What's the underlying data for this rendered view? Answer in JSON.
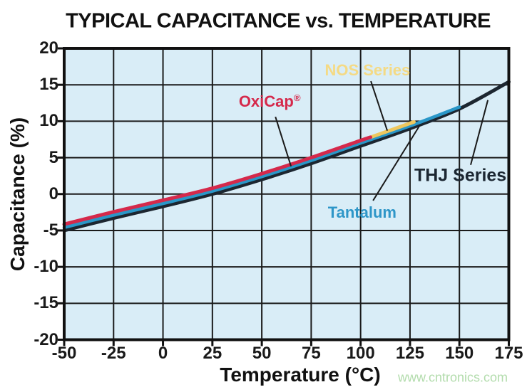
{
  "page": {
    "watermark": "www.cntronics.com"
  },
  "chart_data": {
    "type": "line",
    "title": "TYPICAL CAPACITANCE vs. TEMPERATURE",
    "xlabel": "Temperature (°C)",
    "ylabel": "Capacitance (%)",
    "xlim": [
      -50,
      175
    ],
    "ylim": [
      -20,
      20
    ],
    "xticks": [
      -50,
      -25,
      0,
      25,
      50,
      75,
      100,
      125,
      150,
      175
    ],
    "yticks": [
      20,
      15,
      10,
      5,
      0,
      -5,
      -10,
      -15,
      -20
    ],
    "grid": true,
    "legend_position": "inline annotations with leader lines",
    "plot_bg_color": "#d9edf7",
    "grid_color": "#1a1a1a",
    "border_color": "#111111",
    "series": [
      {
        "name": "THJ Series",
        "color": "#1c2630",
        "stroke_width": 5,
        "x": [
          -50,
          -25,
          0,
          25,
          50,
          75,
          100,
          125,
          150,
          175
        ],
        "y": [
          -5.0,
          -3.3,
          -1.7,
          0.0,
          2.0,
          4.2,
          6.6,
          9.0,
          11.7,
          15.4
        ]
      },
      {
        "name": "Tantalum",
        "color": "#2a97c8",
        "stroke_width": 4.5,
        "x": [
          -50,
          -25,
          0,
          25,
          50,
          75,
          100,
          125,
          150
        ],
        "y": [
          -4.6,
          -2.9,
          -1.3,
          0.4,
          2.4,
          4.6,
          7.0,
          9.35,
          11.95
        ]
      },
      {
        "name": "NOS Series",
        "color": "#eec75e",
        "stroke_width": 5,
        "x": [
          104,
          115,
          127
        ],
        "y": [
          7.7,
          8.75,
          9.9
        ]
      },
      {
        "name": "OxiCap®",
        "color": "#d5294b",
        "stroke_width": 5,
        "x": [
          -50,
          -25,
          0,
          25,
          50,
          75,
          100,
          105
        ],
        "y": [
          -4.15,
          -2.45,
          -0.85,
          0.8,
          2.8,
          5.0,
          7.35,
          7.8
        ]
      }
    ],
    "annotations": [
      {
        "text": "OxiCap",
        "sup": "®",
        "color": "#d5294b",
        "size": "md",
        "label_t": 54,
        "label_v": 12.7,
        "leader": [
          [
            56.9,
            10.6
          ],
          [
            64.8,
            3.8
          ]
        ]
      },
      {
        "text": "NOS Series",
        "sup": "",
        "color": "#f4da85",
        "size": "md",
        "label_t": 103.5,
        "label_v": 17.0,
        "leader": [
          [
            105.2,
            15.5
          ],
          [
            113.5,
            8.7
          ]
        ]
      },
      {
        "text": "Tantalum",
        "sup": "",
        "color": "#2e96c8",
        "size": "md",
        "label_t": 100.8,
        "label_v": -2.6,
        "leader": [
          [
            106.3,
            -0.9
          ],
          [
            130.1,
            9.5
          ]
        ]
      },
      {
        "text": "THJ Series",
        "sup": "",
        "color": "#1c2732",
        "size": "lg",
        "label_t": 150.5,
        "label_v": 2.5,
        "leader": [
          [
            155.7,
            4.0
          ],
          [
            164.4,
            12.9
          ]
        ]
      }
    ]
  }
}
